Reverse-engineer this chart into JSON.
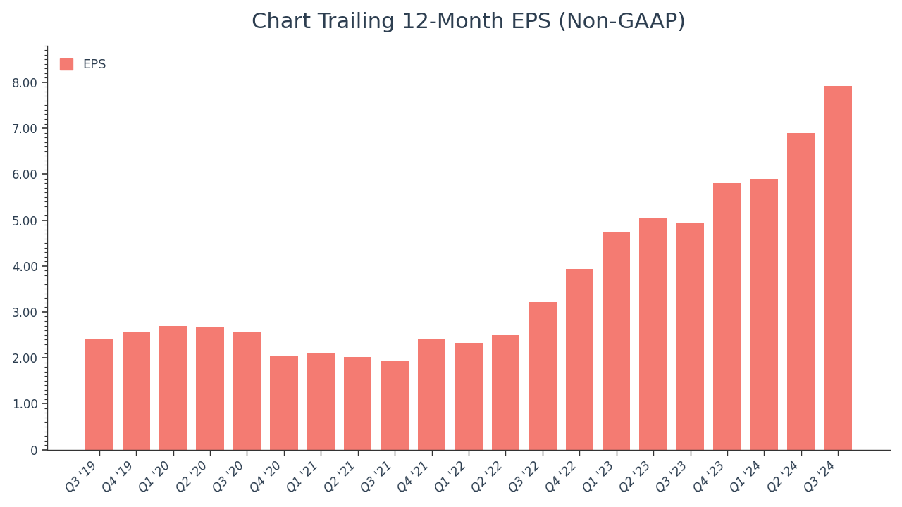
{
  "title": "Chart Trailing 12-Month EPS (Non-GAAP)",
  "categories": [
    "Q3 '19",
    "Q4 '19",
    "Q1 '20",
    "Q2 '20",
    "Q3 '20",
    "Q4 '20",
    "Q1 '21",
    "Q2 '21",
    "Q3 '21",
    "Q4 '21",
    "Q1 '22",
    "Q2 '22",
    "Q3 '22",
    "Q4 '22",
    "Q1 '23",
    "Q2 '23",
    "Q3 '23",
    "Q4 '23",
    "Q1 '24",
    "Q2 '24",
    "Q3 '24"
  ],
  "values": [
    2.4,
    2.57,
    2.7,
    2.68,
    2.57,
    2.03,
    2.1,
    2.02,
    1.93,
    2.4,
    2.33,
    2.5,
    3.21,
    3.93,
    4.75,
    5.04,
    4.94,
    5.8,
    5.9,
    6.9,
    7.92
  ],
  "bar_color": "#F47B72",
  "legend_label": "EPS",
  "title_fontsize": 22,
  "tick_label_fontsize": 12,
  "ylim": [
    0,
    8.8
  ],
  "ytick_values": [
    0,
    1.0,
    2.0,
    3.0,
    4.0,
    5.0,
    6.0,
    7.0,
    8.0
  ],
  "ytick_labels": [
    "0",
    "1.00",
    "2.00",
    "3.00",
    "4.00",
    "5.00",
    "6.00",
    "7.00",
    "8.00"
  ],
  "background_color": "#ffffff",
  "text_color": "#2d3e50",
  "title_color": "#2d3e50",
  "spine_color": "#333333",
  "bar_width": 0.75
}
